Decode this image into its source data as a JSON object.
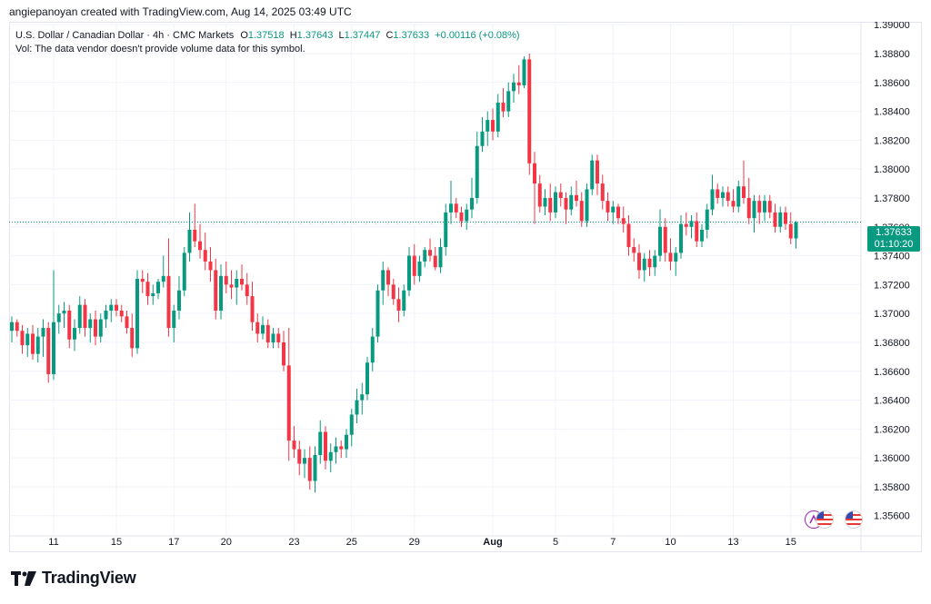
{
  "header": {
    "author_line": "angiepanoyan created with TradingView.com, Aug 14, 2025 03:49 UTC"
  },
  "legend": {
    "symbol": "U.S. Dollar / Canadian Dollar · 4h · CMC Markets",
    "o_label": "O",
    "o_value": "1.37518",
    "h_label": "H",
    "h_value": "1.37643",
    "l_label": "L",
    "l_value": "1.37447",
    "c_label": "C",
    "c_value": "1.37633",
    "change": "+0.00116 (+0.08%)",
    "vol_note": "Vol: The data vendor doesn't provide volume data for this symbol."
  },
  "price_label": {
    "price": "1.37633",
    "countdown": "01:10:20"
  },
  "brand": {
    "name": "TradingView"
  },
  "colors": {
    "up": "#089981",
    "down": "#f23645",
    "grid": "#f0f3fa",
    "text": "#131722",
    "last_line": "#089981"
  },
  "icons": [
    "event-icon",
    "us-flag-icon",
    "us-flag-icon"
  ],
  "chart_data": {
    "type": "candlestick",
    "ylim": [
      1.3546,
      1.3902
    ],
    "y_ticks": [
      "1.39000",
      "1.38800",
      "1.38600",
      "1.38400",
      "1.38200",
      "1.38000",
      "1.37800",
      "1.37600",
      "1.37400",
      "1.37200",
      "1.37000",
      "1.36800",
      "1.36600",
      "1.36400",
      "1.36200",
      "1.36000",
      "1.35800",
      "1.35600"
    ],
    "x_ticks": [
      {
        "label": "11",
        "i": 8
      },
      {
        "label": "15",
        "i": 20
      },
      {
        "label": "17",
        "i": 31
      },
      {
        "label": "20",
        "i": 41
      },
      {
        "label": "23",
        "i": 54
      },
      {
        "label": "25",
        "i": 65
      },
      {
        "label": "29",
        "i": 77
      },
      {
        "label": "Aug",
        "i": 92
      },
      {
        "label": "5",
        "i": 104
      },
      {
        "label": "7",
        "i": 115
      },
      {
        "label": "10",
        "i": 126
      },
      {
        "label": "13",
        "i": 138
      },
      {
        "label": "15",
        "i": 149
      }
    ],
    "grid": true,
    "last_price": 1.37633,
    "candles": [
      [
        1.3688,
        1.3698,
        1.368,
        1.3694
      ],
      [
        1.3694,
        1.3696,
        1.3684,
        1.3688
      ],
      [
        1.3688,
        1.3692,
        1.3672,
        1.3678
      ],
      [
        1.3678,
        1.369,
        1.367,
        1.3686
      ],
      [
        1.3686,
        1.3692,
        1.3668,
        1.3672
      ],
      [
        1.3672,
        1.369,
        1.3666,
        1.3684
      ],
      [
        1.3684,
        1.3696,
        1.367,
        1.369
      ],
      [
        1.369,
        1.3694,
        1.3652,
        1.3658
      ],
      [
        1.3658,
        1.373,
        1.3654,
        1.3694
      ],
      [
        1.3694,
        1.3706,
        1.3686,
        1.37
      ],
      [
        1.37,
        1.3708,
        1.369,
        1.3702
      ],
      [
        1.3702,
        1.3706,
        1.3676,
        1.3682
      ],
      [
        1.3682,
        1.3696,
        1.3674,
        1.369
      ],
      [
        1.369,
        1.3712,
        1.3686,
        1.3706
      ],
      [
        1.3706,
        1.371,
        1.3684,
        1.369
      ],
      [
        1.369,
        1.37,
        1.368,
        1.3696
      ],
      [
        1.3696,
        1.3702,
        1.3678,
        1.3684
      ],
      [
        1.3684,
        1.37,
        1.368,
        1.3696
      ],
      [
        1.3696,
        1.3706,
        1.369,
        1.3702
      ],
      [
        1.3702,
        1.371,
        1.3694,
        1.3706
      ],
      [
        1.3706,
        1.371,
        1.3698,
        1.3702
      ],
      [
        1.3702,
        1.3706,
        1.3694,
        1.3698
      ],
      [
        1.3698,
        1.3702,
        1.3686,
        1.369
      ],
      [
        1.369,
        1.37,
        1.367,
        1.3676
      ],
      [
        1.3676,
        1.373,
        1.3672,
        1.3724
      ],
      [
        1.3724,
        1.373,
        1.3714,
        1.3722
      ],
      [
        1.3722,
        1.3728,
        1.3706,
        1.3712
      ],
      [
        1.3712,
        1.372,
        1.3706,
        1.3714
      ],
      [
        1.3714,
        1.3724,
        1.371,
        1.3722
      ],
      [
        1.3722,
        1.374,
        1.3718,
        1.3726
      ],
      [
        1.3726,
        1.3752,
        1.3684,
        1.369
      ],
      [
        1.369,
        1.3706,
        1.368,
        1.3702
      ],
      [
        1.3702,
        1.3726,
        1.3696,
        1.3716
      ],
      [
        1.3716,
        1.3746,
        1.3712,
        1.3742
      ],
      [
        1.3742,
        1.377,
        1.3736,
        1.3758
      ],
      [
        1.3758,
        1.3776,
        1.3746,
        1.375
      ],
      [
        1.375,
        1.3762,
        1.3738,
        1.3744
      ],
      [
        1.3744,
        1.3756,
        1.373,
        1.3736
      ],
      [
        1.3736,
        1.3746,
        1.3722,
        1.373
      ],
      [
        1.373,
        1.3738,
        1.3696,
        1.3702
      ],
      [
        1.3702,
        1.3734,
        1.3696,
        1.3726
      ],
      [
        1.3726,
        1.3736,
        1.3714,
        1.372
      ],
      [
        1.372,
        1.373,
        1.371,
        1.3718
      ],
      [
        1.3718,
        1.373,
        1.3706,
        1.3724
      ],
      [
        1.3724,
        1.3734,
        1.3716,
        1.372
      ],
      [
        1.372,
        1.3728,
        1.3706,
        1.3712
      ],
      [
        1.3712,
        1.3722,
        1.3688,
        1.3694
      ],
      [
        1.3694,
        1.37,
        1.368,
        1.3686
      ],
      [
        1.3686,
        1.3698,
        1.3682,
        1.3692
      ],
      [
        1.3692,
        1.3696,
        1.3676,
        1.368
      ],
      [
        1.368,
        1.369,
        1.3676,
        1.3686
      ],
      [
        1.3686,
        1.369,
        1.3676,
        1.368
      ],
      [
        1.368,
        1.3688,
        1.366,
        1.3664
      ],
      [
        1.3664,
        1.369,
        1.3598,
        1.3612
      ],
      [
        1.3612,
        1.3622,
        1.36,
        1.3606
      ],
      [
        1.3606,
        1.3612,
        1.3588,
        1.3596
      ],
      [
        1.3596,
        1.3606,
        1.3586,
        1.36
      ],
      [
        1.36,
        1.3608,
        1.3578,
        1.3584
      ],
      [
        1.3584,
        1.3608,
        1.3576,
        1.3602
      ],
      [
        1.3602,
        1.3626,
        1.3596,
        1.3618
      ],
      [
        1.3618,
        1.3622,
        1.3592,
        1.3598
      ],
      [
        1.3598,
        1.361,
        1.359,
        1.3604
      ],
      [
        1.3604,
        1.3614,
        1.3596,
        1.3608
      ],
      [
        1.3608,
        1.3612,
        1.36,
        1.3606
      ],
      [
        1.3606,
        1.362,
        1.36,
        1.3616
      ],
      [
        1.3616,
        1.3634,
        1.3608,
        1.363
      ],
      [
        1.363,
        1.3648,
        1.3624,
        1.364
      ],
      [
        1.364,
        1.3652,
        1.363,
        1.3644
      ],
      [
        1.3644,
        1.367,
        1.364,
        1.3666
      ],
      [
        1.3666,
        1.369,
        1.366,
        1.3684
      ],
      [
        1.3684,
        1.372,
        1.368,
        1.3716
      ],
      [
        1.3716,
        1.3736,
        1.3706,
        1.373
      ],
      [
        1.373,
        1.3732,
        1.3712,
        1.372
      ],
      [
        1.372,
        1.3724,
        1.3706,
        1.371
      ],
      [
        1.371,
        1.3718,
        1.3694,
        1.3702
      ],
      [
        1.3702,
        1.372,
        1.3698,
        1.3716
      ],
      [
        1.3716,
        1.3746,
        1.3712,
        1.374
      ],
      [
        1.374,
        1.3748,
        1.372,
        1.3726
      ],
      [
        1.3726,
        1.374,
        1.3722,
        1.3736
      ],
      [
        1.3736,
        1.3746,
        1.3732,
        1.3744
      ],
      [
        1.3744,
        1.3752,
        1.3736,
        1.374
      ],
      [
        1.374,
        1.3746,
        1.373,
        1.3732
      ],
      [
        1.3732,
        1.3752,
        1.3728,
        1.3746
      ],
      [
        1.3746,
        1.3776,
        1.374,
        1.377
      ],
      [
        1.377,
        1.3792,
        1.3762,
        1.3776
      ],
      [
        1.3776,
        1.378,
        1.3766,
        1.377
      ],
      [
        1.377,
        1.3774,
        1.376,
        1.3764
      ],
      [
        1.3764,
        1.3776,
        1.3758,
        1.3772
      ],
      [
        1.3772,
        1.3794,
        1.3766,
        1.378
      ],
      [
        1.378,
        1.3826,
        1.3776,
        1.3816
      ],
      [
        1.3816,
        1.3836,
        1.3812,
        1.3826
      ],
      [
        1.3826,
        1.384,
        1.3816,
        1.3834
      ],
      [
        1.3834,
        1.3842,
        1.382,
        1.3826
      ],
      [
        1.3826,
        1.3852,
        1.3822,
        1.3846
      ],
      [
        1.3846,
        1.3856,
        1.3836,
        1.384
      ],
      [
        1.384,
        1.386,
        1.3836,
        1.3854
      ],
      [
        1.3854,
        1.3866,
        1.3846,
        1.386
      ],
      [
        1.386,
        1.3872,
        1.3852,
        1.3858
      ],
      [
        1.3858,
        1.3878,
        1.3856,
        1.3876
      ],
      [
        1.3876,
        1.388,
        1.3796,
        1.3804
      ],
      [
        1.3804,
        1.3812,
        1.3762,
        1.379
      ],
      [
        1.379,
        1.3796,
        1.377,
        1.3774
      ],
      [
        1.3774,
        1.3786,
        1.3768,
        1.378
      ],
      [
        1.378,
        1.379,
        1.3764,
        1.377
      ],
      [
        1.377,
        1.3788,
        1.3766,
        1.3784
      ],
      [
        1.3784,
        1.379,
        1.3774,
        1.378
      ],
      [
        1.378,
        1.3784,
        1.3762,
        1.3772
      ],
      [
        1.3772,
        1.3788,
        1.3768,
        1.3782
      ],
      [
        1.3782,
        1.3792,
        1.3774,
        1.3778
      ],
      [
        1.3778,
        1.3784,
        1.376,
        1.3764
      ],
      [
        1.3764,
        1.379,
        1.376,
        1.3786
      ],
      [
        1.3786,
        1.381,
        1.3782,
        1.3806
      ],
      [
        1.3806,
        1.381,
        1.3782,
        1.379
      ],
      [
        1.379,
        1.3796,
        1.3772,
        1.3778
      ],
      [
        1.3778,
        1.3784,
        1.3764,
        1.377
      ],
      [
        1.377,
        1.3778,
        1.3762,
        1.3774
      ],
      [
        1.3774,
        1.3776,
        1.3762,
        1.3766
      ],
      [
        1.3766,
        1.3774,
        1.3756,
        1.3762
      ],
      [
        1.3762,
        1.3768,
        1.374,
        1.3746
      ],
      [
        1.3746,
        1.3752,
        1.3736,
        1.3742
      ],
      [
        1.3742,
        1.3748,
        1.3724,
        1.373
      ],
      [
        1.373,
        1.3742,
        1.3722,
        1.3738
      ],
      [
        1.3738,
        1.3744,
        1.3726,
        1.3732
      ],
      [
        1.3732,
        1.3744,
        1.3726,
        1.374
      ],
      [
        1.374,
        1.3772,
        1.3736,
        1.376
      ],
      [
        1.376,
        1.3766,
        1.3736,
        1.3742
      ],
      [
        1.3742,
        1.3752,
        1.373,
        1.3736
      ],
      [
        1.3736,
        1.3746,
        1.3726,
        1.3742
      ],
      [
        1.3742,
        1.3768,
        1.3738,
        1.3762
      ],
      [
        1.3762,
        1.377,
        1.3754,
        1.376
      ],
      [
        1.376,
        1.3768,
        1.3752,
        1.3764
      ],
      [
        1.3764,
        1.377,
        1.3746,
        1.375
      ],
      [
        1.375,
        1.3762,
        1.3746,
        1.3758
      ],
      [
        1.3758,
        1.3776,
        1.3752,
        1.3772
      ],
      [
        1.3772,
        1.3796,
        1.3768,
        1.3786
      ],
      [
        1.3786,
        1.379,
        1.3776,
        1.378
      ],
      [
        1.378,
        1.3788,
        1.3774,
        1.3784
      ],
      [
        1.3784,
        1.3788,
        1.3774,
        1.3778
      ],
      [
        1.3778,
        1.3786,
        1.377,
        1.3774
      ],
      [
        1.3774,
        1.3792,
        1.377,
        1.3788
      ],
      [
        1.3788,
        1.3806,
        1.3776,
        1.378
      ],
      [
        1.378,
        1.3794,
        1.3762,
        1.3766
      ],
      [
        1.3766,
        1.3782,
        1.3756,
        1.3778
      ],
      [
        1.3778,
        1.3782,
        1.3762,
        1.377
      ],
      [
        1.377,
        1.3782,
        1.3764,
        1.3778
      ],
      [
        1.3778,
        1.3782,
        1.3766,
        1.377
      ],
      [
        1.377,
        1.3776,
        1.3756,
        1.376
      ],
      [
        1.376,
        1.3774,
        1.3756,
        1.377
      ],
      [
        1.377,
        1.3774,
        1.3758,
        1.3762
      ],
      [
        1.3762,
        1.377,
        1.3748,
        1.3752
      ],
      [
        1.3752,
        1.3764,
        1.3745,
        1.3763
      ]
    ]
  }
}
